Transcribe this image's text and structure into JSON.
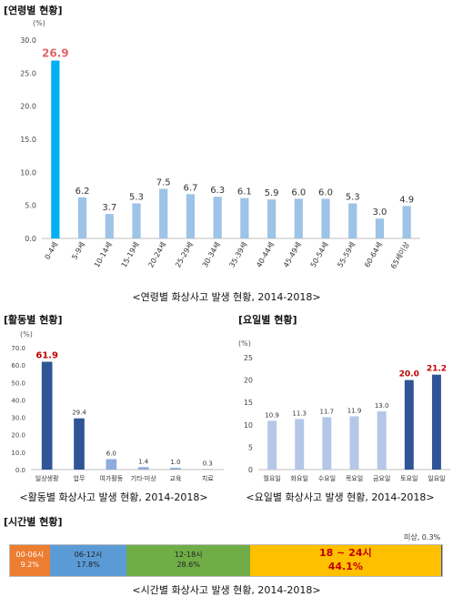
{
  "sections": {
    "age_title": "[연령별 현황]",
    "age_caption": "<연령별 화상사고 발생 현황, 2014-2018>",
    "activity_title": "[활동별 현황]",
    "activity_caption": "<활동별 화상사고 발생 현황, 2014-2018>",
    "weekday_title": "[요일별 현황]",
    "weekday_caption": "<요일별 화상사고 발생 현황, 2014-2018>",
    "time_title": "[시간별 현황]",
    "time_caption": "<시간별 화상사고 발생 현황, 2014-2018>"
  },
  "colors": {
    "age_highlight": "#00b0f0",
    "age_bar": "#9dc3e6",
    "age_highlight_label": "#e06666",
    "dark_bar": "#2f5597",
    "light_bar": "#b4c7e7",
    "mid_bar": "#8faadc",
    "highlight_label": "#c00000"
  },
  "chart_data": [
    {
      "id": "age",
      "type": "bar",
      "ylabel": "(%)",
      "ylim": [
        0,
        30
      ],
      "yticks": [
        "0.0",
        "5.0",
        "10.0",
        "15.0",
        "20.0",
        "25.0",
        "30.0"
      ],
      "categories": [
        "0-4세",
        "5-9세",
        "10-14세",
        "15-19세",
        "20-24세",
        "25-29세",
        "30-34세",
        "35-39세",
        "40-44세",
        "45-49세",
        "50-54세",
        "55-59세",
        "60-64세",
        "65세이상"
      ],
      "values": [
        26.9,
        6.2,
        3.7,
        5.3,
        7.5,
        6.7,
        6.3,
        6.1,
        5.9,
        6.0,
        6.0,
        5.3,
        3.0,
        4.9
      ],
      "value_labels": [
        "26.9",
        "6.2",
        "3.7",
        "5.3",
        "7.5",
        "6.7",
        "6.3",
        "6.1",
        "5.9",
        "6.0",
        "6.0",
        "5.3",
        "3.0",
        "4.9"
      ],
      "highlight_index": 0,
      "grid": false
    },
    {
      "id": "activity",
      "type": "bar",
      "ylabel": "(%)",
      "ylim": [
        0,
        70
      ],
      "yticks": [
        "0.0",
        "10.0",
        "20.0",
        "30.0",
        "40.0",
        "50.0",
        "60.0",
        "70.0"
      ],
      "categories": [
        "일상생활",
        "업무",
        "여가활동",
        "기타·미상",
        "교육",
        "치료"
      ],
      "values": [
        61.9,
        29.4,
        6.0,
        1.4,
        1.0,
        0.3
      ],
      "value_labels": [
        "61.9",
        "29.4",
        "6.0",
        "1.4",
        "1.0",
        "0.3"
      ],
      "highlight_index": 0,
      "grid": false
    },
    {
      "id": "weekday",
      "type": "bar",
      "ylabel": "(%)",
      "ylim": [
        0,
        25
      ],
      "yticks": [
        "0",
        "5",
        "10",
        "15",
        "20",
        "25"
      ],
      "categories": [
        "월요일",
        "화요일",
        "수요일",
        "목요일",
        "금요일",
        "토요일",
        "일요일"
      ],
      "values": [
        10.9,
        11.3,
        11.7,
        11.9,
        13.0,
        20.0,
        21.2
      ],
      "value_labels": [
        "10.9",
        "11.3",
        "11.7",
        "11.9",
        "13.0",
        "20.0",
        "21.2"
      ],
      "highlight_indices": [
        5,
        6
      ],
      "grid": false
    },
    {
      "id": "time",
      "type": "bar",
      "stacked": true,
      "orientation": "horizontal",
      "segments": [
        {
          "label": "00-06시",
          "value": 9.2,
          "value_label": "9.2%",
          "color": "#ed7d31",
          "text_color": "#ffffff"
        },
        {
          "label": "06-12시",
          "value": 17.8,
          "value_label": "17.8%",
          "color": "#5b9bd5",
          "text_color": "#1f1f1f"
        },
        {
          "label": "12-18시",
          "value": 28.6,
          "value_label": "28.6%",
          "color": "#70ad47",
          "text_color": "#1f1f1f"
        },
        {
          "label": "18 ~ 24시",
          "value": 44.1,
          "value_label": "44.1%",
          "color": "#ffc000",
          "text_color": "#c00000"
        },
        {
          "label": "미상, 0.3%",
          "value": 0.3,
          "color": "#2f5597"
        }
      ]
    }
  ]
}
